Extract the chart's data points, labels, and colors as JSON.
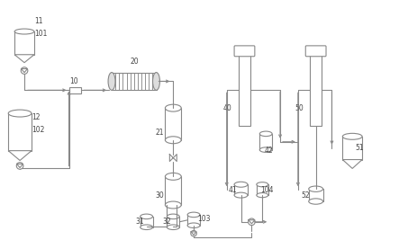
{
  "bg_color": "#ffffff",
  "line_color": "#888888",
  "label_color": "#444444",
  "figsize": [
    4.43,
    2.67
  ],
  "dpi": 100
}
